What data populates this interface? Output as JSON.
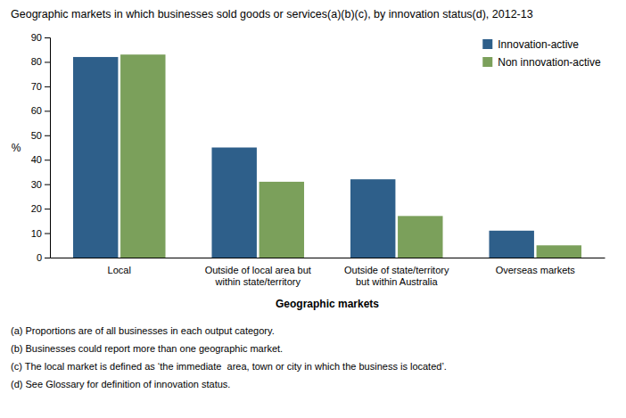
{
  "chart_data": {
    "type": "bar",
    "title": "Geographic markets in which businesses sold goods or services(a)(b)(c), by innovation status(d), 2012-13",
    "categories": [
      "Local",
      "Outside of local area but\nwithin state/territory",
      "Outside of state/territory\nbut within Australia",
      "Overseas markets"
    ],
    "series": [
      {
        "name": "Innovation-active",
        "color": "#2E5F8A",
        "values": [
          82,
          45,
          32,
          11
        ]
      },
      {
        "name": "Non innovation-active",
        "color": "#7BA05B",
        "values": [
          83,
          31,
          17,
          5
        ]
      }
    ],
    "xlabel": "Geographic markets",
    "ylabel": "%",
    "ylim": [
      0,
      90
    ],
    "yticks": [
      0,
      10,
      20,
      30,
      40,
      50,
      60,
      70,
      80,
      90
    ],
    "grid": false,
    "legend": "upper right",
    "footnotes": [
      "(a) Proportions are of all businesses in each output category.",
      "(b) Businesses could report more than one geographic market.",
      "(c) The local market is defined as ‘the immediate  area, town or city in which the business is located’.",
      "(d) See Glossary for definition of innovation status."
    ]
  }
}
